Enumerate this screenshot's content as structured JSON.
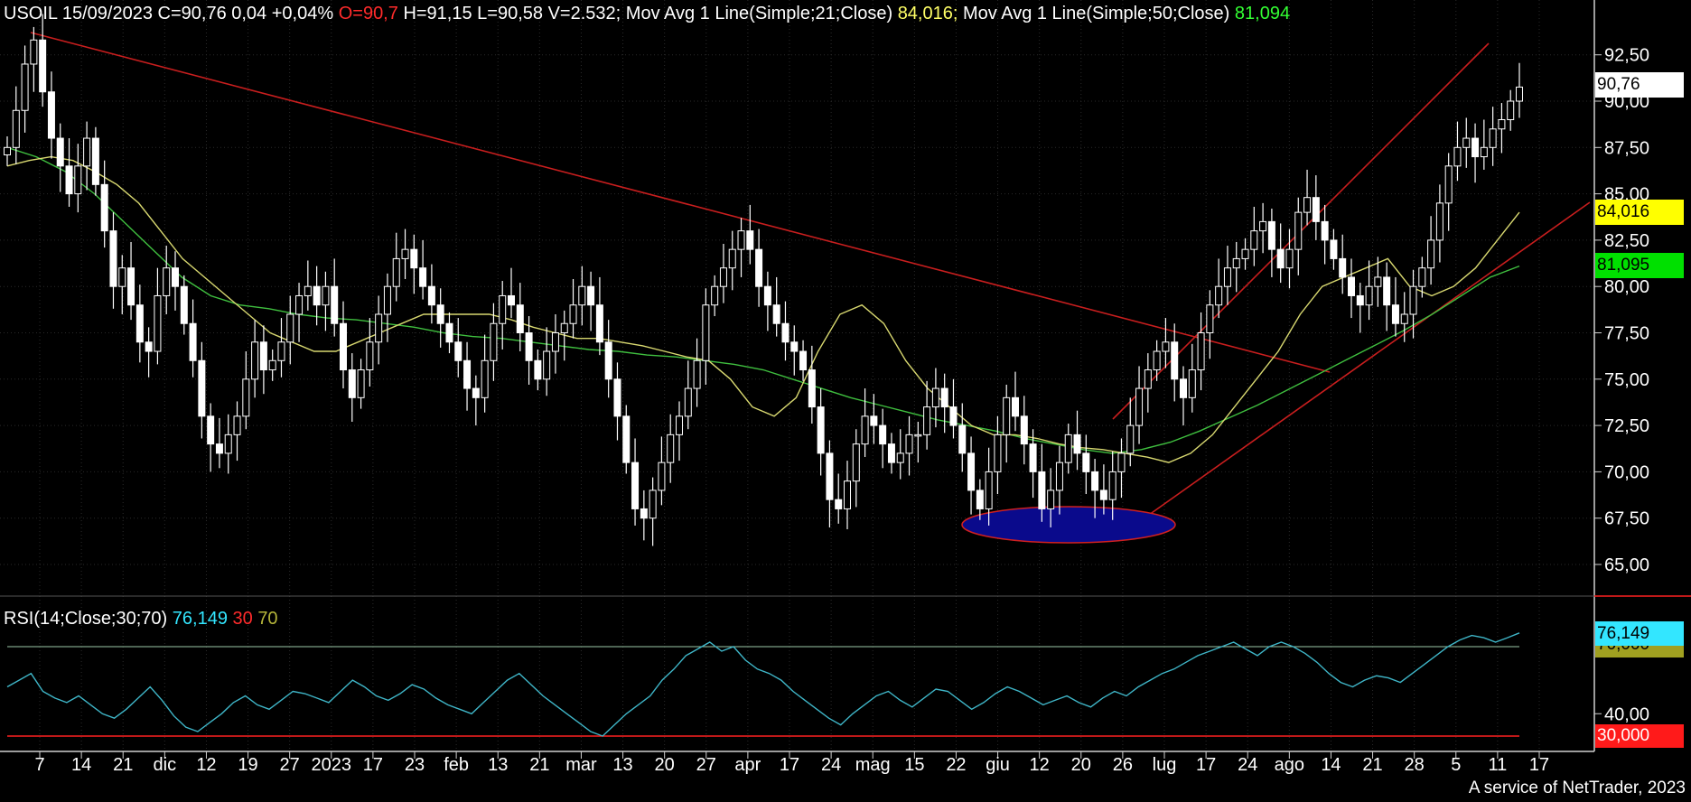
{
  "header": {
    "symbol": "USOIL",
    "date": "15/09/2023",
    "close": "C=90,76",
    "change": "0,04",
    "change_pct": "+0,04%",
    "open": "O=90,7",
    "high": "H=91,15",
    "low": "L=90,58",
    "volume": "V=2.532;",
    "ma21_label": "Mov Avg 1 Line(Simple;21;Close)",
    "ma21_value": "84,016;",
    "ma50_label": "Mov Avg 1 Line(Simple;50;Close)",
    "ma50_value": "81,094"
  },
  "rsi_header": {
    "label": "RSI(14;Close;30;70)",
    "value": "76,149",
    "low": "30",
    "high": "70"
  },
  "tags": {
    "price": "90,76",
    "ma21": "84,016",
    "ma50": "81,095",
    "rsi": "76,149",
    "rsi_high": "70,000",
    "rsi_low": "30,000"
  },
  "footer": "A service of NetTrader, 2023",
  "colors": {
    "background": "#000000",
    "grid": "#2a2a2a",
    "candle": "#ffffff",
    "ma21": "#d8d870",
    "ma50": "#3fbf3f",
    "trendline": "#c81e1e",
    "rsi_line": "#3fb6c8",
    "ellipse_fill": "#0a0a8c",
    "ellipse_stroke": "#d02020"
  },
  "chart_data": [
    {
      "type": "candlestick",
      "title": "USOIL",
      "y_axis_side": "right",
      "ylim": [
        63,
        95
      ],
      "y_ticks": [
        "65,00",
        "67,50",
        "70,00",
        "72,50",
        "75,00",
        "77,50",
        "80,00",
        "82,50",
        "85,00",
        "87,50",
        "90,00",
        "92,50"
      ],
      "x_ticks": [
        "7",
        "14",
        "21",
        "dic",
        "12",
        "19",
        "27",
        "2023",
        "17",
        "23",
        "feb",
        "13",
        "21",
        "mar",
        "13",
        "20",
        "27",
        "apr",
        "17",
        "24",
        "mag",
        "15",
        "22",
        "giu",
        "12",
        "20",
        "26",
        "lug",
        "17",
        "24",
        "ago",
        "14",
        "21",
        "28",
        "5",
        "11",
        "17"
      ],
      "close_series": [
        87.5,
        89.5,
        92.0,
        93.3,
        90.5,
        88.0,
        86.5,
        85.0,
        86.5,
        88.0,
        85.5,
        83.0,
        80.0,
        81.0,
        79.0,
        77.0,
        76.5,
        79.5,
        81.0,
        80.0,
        78.0,
        76.0,
        73.0,
        71.5,
        71.0,
        72.0,
        73.0,
        75.0,
        77.0,
        75.5,
        76.0,
        77.0,
        78.5,
        79.5,
        80.0,
        79.0,
        80.0,
        78.0,
        75.5,
        74.0,
        75.5,
        77.0,
        78.5,
        80.0,
        81.5,
        82.0,
        81.0,
        80.0,
        79.0,
        78.0,
        77.0,
        76.0,
        74.5,
        74.0,
        76.0,
        78.0,
        79.5,
        79.0,
        77.5,
        76.0,
        75.0,
        76.5,
        77.5,
        78.0,
        79.0,
        80.0,
        79.0,
        77.0,
        75.0,
        73.0,
        70.5,
        68.0,
        67.5,
        69.0,
        70.5,
        72.0,
        73.0,
        74.5,
        76.0,
        79.0,
        80.0,
        81.0,
        82.0,
        83.0,
        82.0,
        80.0,
        79.0,
        78.0,
        77.0,
        76.5,
        75.5,
        73.5,
        71.0,
        68.5,
        68.0,
        69.5,
        71.5,
        73.0,
        72.5,
        71.5,
        70.5,
        71.0,
        72.0,
        72.0,
        73.5,
        74.5,
        73.5,
        72.5,
        71.0,
        69.0,
        68.0,
        70.0,
        72.0,
        74.0,
        73.0,
        71.5,
        70.0,
        68.0,
        69.0,
        70.5,
        72.0,
        71.0,
        70.0,
        69.0,
        68.5,
        70.0,
        71.0,
        72.5,
        74.5,
        75.5,
        76.5,
        77.0,
        75.0,
        74.0,
        75.5,
        77.5,
        79.0,
        80.0,
        81.0,
        81.5,
        82.0,
        83.0,
        83.5,
        82.0,
        81.0,
        82.0,
        84.0,
        84.8,
        83.5,
        82.5,
        81.5,
        80.5,
        79.5,
        79.0,
        80.0,
        80.5,
        79.0,
        78.0,
        78.5,
        80.0,
        81.0,
        82.5,
        84.5,
        86.5,
        87.5,
        88.0,
        87.0,
        87.5,
        88.5,
        89.0,
        90.0,
        90.76
      ],
      "ma21": [
        86.5,
        86.8,
        87.0,
        86.8,
        86.2,
        85.5,
        84.5,
        83.0,
        81.5,
        80.5,
        79.5,
        78.5,
        77.5,
        77.0,
        76.5,
        76.5,
        77.0,
        77.5,
        78.0,
        78.5,
        78.5,
        78.5,
        78.5,
        78.2,
        77.8,
        77.5,
        77.2,
        77.2,
        77.0,
        76.8,
        76.5,
        76.2,
        76.0,
        75.0,
        73.5,
        73.0,
        74.0,
        76.5,
        78.5,
        79.0,
        78.0,
        76.0,
        74.5,
        73.5,
        72.5,
        72.0,
        72.0,
        71.8,
        71.5,
        71.3,
        71.2,
        71.0,
        70.8,
        70.5,
        71.0,
        72.0,
        73.5,
        75.0,
        76.5,
        78.5,
        80.0,
        80.5,
        81.0,
        81.5,
        80.0,
        79.5,
        80.0,
        81.0,
        82.5,
        84.0
      ],
      "ma50": [
        87.5,
        87.0,
        86.2,
        85.0,
        83.5,
        82.0,
        80.5,
        79.5,
        79.0,
        78.8,
        78.5,
        78.3,
        78.2,
        78.0,
        77.8,
        77.5,
        77.3,
        77.2,
        77.0,
        76.8,
        76.6,
        76.5,
        76.3,
        76.2,
        76.0,
        75.8,
        75.5,
        75.0,
        74.5,
        74.0,
        73.6,
        73.2,
        72.8,
        72.5,
        72.2,
        71.8,
        71.5,
        71.2,
        71.0,
        71.2,
        71.6,
        72.2,
        72.9,
        73.6,
        74.4,
        75.2,
        76.0,
        76.8,
        77.6,
        78.5,
        79.5,
        80.5,
        81.1
      ],
      "trendlines": [
        {
          "name": "downtrend",
          "from": [
            "2022-11-07",
            93.3
          ],
          "to": [
            "2023-07-24",
            75.5
          ]
        },
        {
          "name": "channel-upper",
          "from": [
            "2023-06-06",
            72.8
          ],
          "to": [
            "2023-09-15",
            93.0
          ]
        },
        {
          "name": "channel-lower",
          "from": [
            "2023-06-28",
            67.5
          ],
          "to": [
            "2023-09-18",
            84.8
          ]
        }
      ],
      "annotation": {
        "type": "ellipse",
        "label": "",
        "x_range": [
          "giu",
          "lug"
        ],
        "y_range": [
          66.2,
          68.3
        ]
      }
    },
    {
      "type": "line",
      "title": "RSI(14;Close;30;70)",
      "ylim": [
        28,
        78
      ],
      "y_ticks": [
        "40,00"
      ],
      "levels": [
        30,
        70
      ],
      "values": [
        52,
        55,
        58,
        50,
        47,
        45,
        48,
        44,
        40,
        38,
        42,
        47,
        52,
        46,
        39,
        34,
        32,
        36,
        40,
        45,
        48,
        44,
        42,
        46,
        50,
        49,
        47,
        45,
        50,
        55,
        52,
        48,
        46,
        49,
        53,
        51,
        47,
        44,
        42,
        40,
        45,
        50,
        55,
        58,
        53,
        48,
        44,
        40,
        36,
        32,
        30,
        35,
        40,
        44,
        48,
        55,
        60,
        66,
        69,
        72,
        68,
        70,
        64,
        60,
        58,
        55,
        50,
        46,
        42,
        38,
        35,
        40,
        44,
        48,
        50,
        46,
        43,
        47,
        51,
        50,
        46,
        42,
        45,
        49,
        52,
        50,
        47,
        44,
        46,
        48,
        45,
        43,
        47,
        50,
        48,
        52,
        55,
        58,
        60,
        63,
        66,
        68,
        70,
        72,
        69,
        66,
        70,
        72,
        70,
        67,
        63,
        58,
        54,
        52,
        55,
        57,
        56,
        54,
        58,
        62,
        66,
        70,
        73,
        75,
        74,
        72,
        74,
        76.149
      ]
    }
  ]
}
